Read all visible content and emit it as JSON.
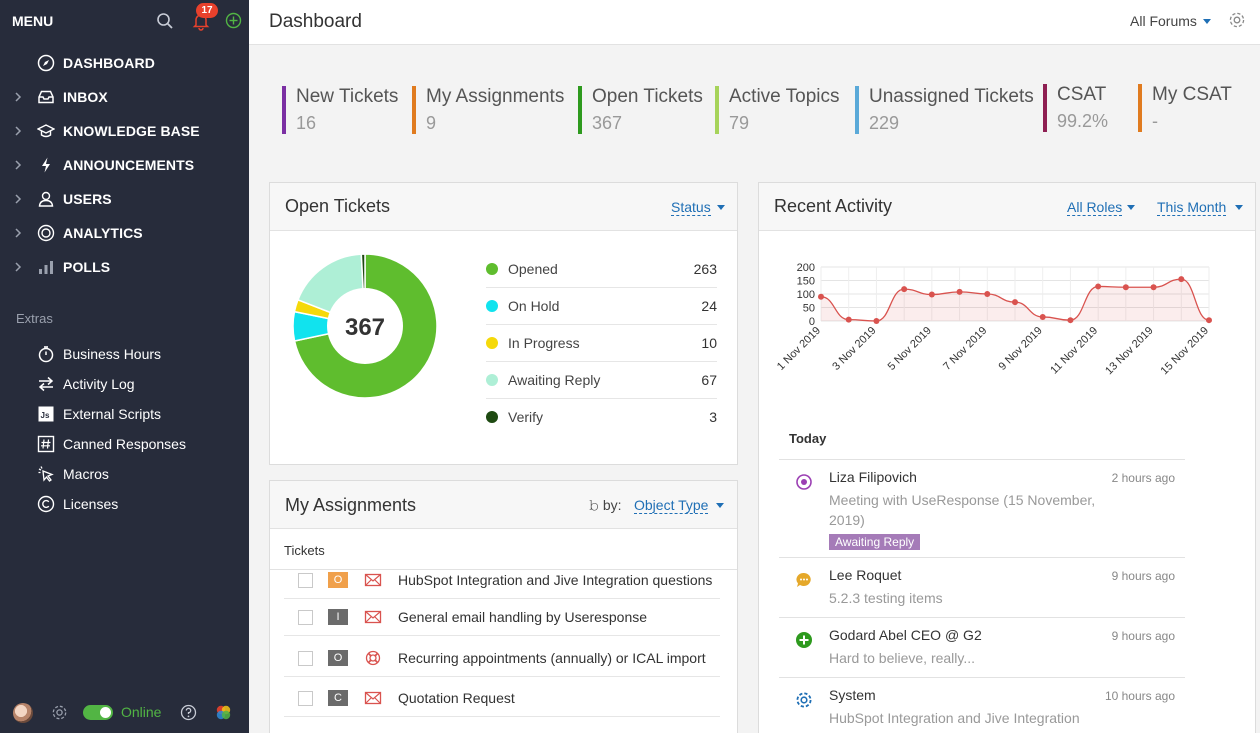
{
  "sidebar": {
    "menu_label": "MENU",
    "notification_count": "17",
    "nav": [
      {
        "label": "DASHBOARD",
        "icon": "compass-icon"
      },
      {
        "label": "INBOX",
        "icon": "inbox-icon"
      },
      {
        "label": "KNOWLEDGE BASE",
        "icon": "graduation-cap-icon"
      },
      {
        "label": "ANNOUNCEMENTS",
        "icon": "lightning-icon"
      },
      {
        "label": "USERS",
        "icon": "user-icon"
      },
      {
        "label": "ANALYTICS",
        "icon": "gauge-icon"
      },
      {
        "label": "POLLS",
        "icon": "bar-chart-icon"
      }
    ],
    "extras_title": "Extras",
    "extras": [
      {
        "label": "Business Hours",
        "icon": "stopwatch-icon"
      },
      {
        "label": "Activity Log",
        "icon": "arrows-exchange-icon"
      },
      {
        "label": "External Scripts",
        "icon": "js-icon"
      },
      {
        "label": "Canned Responses",
        "icon": "hash-icon"
      },
      {
        "label": "Macros",
        "icon": "cursor-click-icon"
      },
      {
        "label": "Licenses",
        "icon": "copyright-icon"
      }
    ],
    "footer": {
      "status": "Online"
    },
    "js_icon_text": "Js"
  },
  "header": {
    "title": "Dashboard",
    "forums_filter": "All Forums"
  },
  "stats": [
    {
      "name": "New Tickets",
      "value": "16",
      "color": "#7b2fa3"
    },
    {
      "name": "My Assignments",
      "value": "9",
      "color": "#e07b1f"
    },
    {
      "name": "Open Tickets",
      "value": "367",
      "color": "#2e9a1e"
    },
    {
      "name": "Active Topics",
      "value": "79",
      "color": "#a6d35a"
    },
    {
      "name": "Unassigned Tickets",
      "value": "229",
      "color": "#5aa9d8"
    },
    {
      "name": "CSAT",
      "value": "99.2%",
      "color": "#8e1f52"
    },
    {
      "name": "My CSAT",
      "value": "-",
      "color": "#e07b1f"
    }
  ],
  "open_tickets": {
    "title": "Open Tickets",
    "filter": "Status",
    "total": "367",
    "legend": [
      {
        "name": "Opened",
        "value": "263",
        "color": "#5fbd2e"
      },
      {
        "name": "On Hold",
        "value": "24",
        "color": "#11e3ee"
      },
      {
        "name": "In Progress",
        "value": "10",
        "color": "#f5d90a"
      },
      {
        "name": "Awaiting Reply",
        "value": "67",
        "color": "#aeefd6"
      },
      {
        "name": "Verify",
        "value": "3",
        "color": "#1e4a12"
      }
    ]
  },
  "assignments": {
    "title": "My Assignments",
    "group_by_label": "by:",
    "group_by_value": "Object Type",
    "subheading": "Tickets",
    "rows": [
      {
        "badge": "O",
        "badge_color": "#f0a04b",
        "icon": "envelope-icon",
        "title": "HubSpot Integration and Jive Integration questions"
      },
      {
        "badge": "I",
        "badge_color": "#6b6b6b",
        "icon": "envelope-icon",
        "title": "General email handling by Useresponse"
      },
      {
        "badge": "O",
        "badge_color": "#6b6b6b",
        "icon": "lifebuoy-icon",
        "title": "Recurring appointments (annually) or ICAL import"
      },
      {
        "badge": "C",
        "badge_color": "#6b6b6b",
        "icon": "envelope-icon",
        "title": "Quotation Request"
      }
    ]
  },
  "recent_activity": {
    "title": "Recent Activity",
    "roles_filter": "All Roles",
    "period_filter": "This Month",
    "today_label": "Today",
    "items": [
      {
        "name": "Liza Filipovich",
        "time": "2 hours ago",
        "desc": "Meeting with UseResponse (15 November, 2019)",
        "tag": "Awaiting Reply",
        "icon": "target-icon",
        "icon_color": "#9b3fb3"
      },
      {
        "name": "Lee Roquet",
        "time": "9 hours ago",
        "desc": "5.2.3 testing items",
        "tag": "",
        "icon": "chat-bubble-icon",
        "icon_color": "#e5a82a"
      },
      {
        "name": "Godard Abel CEO @ G2",
        "time": "9 hours ago",
        "desc": "Hard to believe, really...",
        "tag": "",
        "icon": "plus-circle-icon",
        "icon_color": "#2e9a1e"
      },
      {
        "name": "System",
        "time": "10 hours ago",
        "desc": "HubSpot Integration and Jive Integration",
        "tag": "",
        "icon": "gear-icon",
        "icon_color": "#1f6fb5"
      }
    ]
  },
  "chart_data": {
    "type": "line",
    "x": [
      "1 Nov 2019",
      "2 Nov 2019",
      "3 Nov 2019",
      "4 Nov 2019",
      "5 Nov 2019",
      "6 Nov 2019",
      "7 Nov 2019",
      "8 Nov 2019",
      "9 Nov 2019",
      "10 Nov 2019",
      "11 Nov 2019",
      "12 Nov 2019",
      "13 Nov 2019",
      "14 Nov 2019",
      "15 Nov 2019"
    ],
    "tick_labels": [
      "1 Nov 2019",
      "3 Nov 2019",
      "5 Nov 2019",
      "7 Nov 2019",
      "9 Nov 2019",
      "11 Nov 2019",
      "13 Nov 2019",
      "15 Nov 2019"
    ],
    "series": [
      {
        "values": [
          90,
          5,
          0,
          118,
          98,
          108,
          100,
          70,
          15,
          3,
          128,
          125,
          125,
          155,
          3
        ],
        "color": "#d9534f"
      }
    ],
    "ylim": [
      0,
      200
    ],
    "yticks": [
      "200",
      "150",
      "100",
      "50",
      "0"
    ],
    "grid": true
  }
}
